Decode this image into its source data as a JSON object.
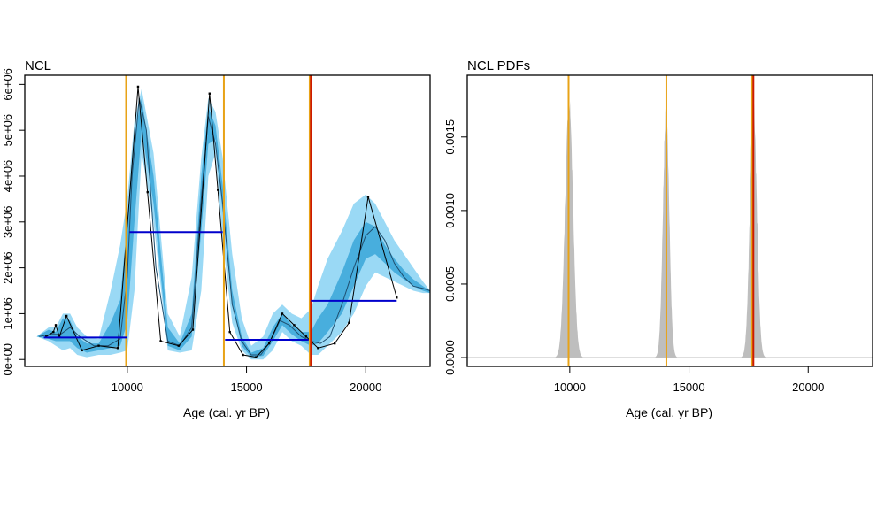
{
  "chart_data": [
    {
      "type": "line",
      "title": "NCL",
      "xlabel": "Age (cal. yr BP)",
      "ylabel": "",
      "xlim": [
        5700,
        22700
      ],
      "ylim": [
        -150000,
        6200000
      ],
      "xticks": [
        10000,
        15000,
        20000
      ],
      "xtick_labels": [
        "10000",
        "15000",
        "20000"
      ],
      "yticks": [
        0,
        1000000,
        2000000,
        3000000,
        4000000,
        5000000,
        6000000
      ],
      "ytick_labels": [
        "0e+00",
        "1e+06",
        "2e+06",
        "3e+06",
        "4e+06",
        "5e+06",
        "6e+06"
      ],
      "grid": false,
      "colors": {
        "outer_band": "#9ad9f5",
        "inner_band": "#3aa6d8",
        "orange_line": "#e8a317",
        "red_line": "#cc1a00",
        "blue_line": "#0000cc",
        "line": "#000000"
      },
      "band_x": [
        6200,
        6700,
        7000,
        7300,
        7600,
        7900,
        8300,
        8800,
        9300,
        9700,
        10000,
        10300,
        10600,
        11100,
        11700,
        12200,
        12700,
        13100,
        13400,
        13700,
        14000,
        14400,
        14800,
        15200,
        15700,
        16100,
        16500,
        16900,
        17300,
        17700,
        18000,
        18400,
        19000,
        19500,
        20000,
        20400,
        20800,
        21200,
        21600,
        22000,
        22400,
        22700
      ],
      "outer_upper": [
        500000,
        700000,
        700000,
        1000000,
        1000000,
        700000,
        500000,
        450000,
        1500000,
        2500000,
        3500000,
        5200000,
        5900000,
        4500000,
        1000000,
        500000,
        1800000,
        4400000,
        5700000,
        5400000,
        4400000,
        2300000,
        900000,
        300000,
        500000,
        1000000,
        1200000,
        1000000,
        900000,
        1100000,
        1600000,
        2200000,
        2800000,
        3400000,
        3600000,
        3400000,
        3000000,
        2600000,
        2300000,
        2000000,
        1700000,
        1500000
      ],
      "outer_lower": [
        500000,
        400000,
        300000,
        200000,
        250000,
        100000,
        50000,
        100000,
        100000,
        150000,
        200000,
        1500000,
        4500000,
        3000000,
        200000,
        150000,
        200000,
        1500000,
        4000000,
        4500000,
        2600000,
        800000,
        200000,
        0,
        0,
        200000,
        600000,
        400000,
        300000,
        100000,
        100000,
        300000,
        600000,
        1000000,
        1600000,
        1900000,
        1800000,
        1700000,
        1600000,
        1500000,
        1450000,
        1450000
      ],
      "inner_upper": [
        500000,
        650000,
        600000,
        900000,
        850000,
        500000,
        350000,
        350000,
        800000,
        1300000,
        3000000,
        4900000,
        5700000,
        4000000,
        700000,
        350000,
        1000000,
        4000000,
        5500000,
        5100000,
        3800000,
        1500000,
        500000,
        150000,
        250000,
        700000,
        1000000,
        750000,
        600000,
        600000,
        900000,
        1200000,
        1900000,
        2600000,
        3000000,
        2900000,
        2500000,
        2200000,
        1950000,
        1750000,
        1600000,
        1500000
      ],
      "inner_lower": [
        500000,
        450000,
        400000,
        400000,
        400000,
        250000,
        150000,
        200000,
        250000,
        300000,
        800000,
        3000000,
        5000000,
        3400000,
        300000,
        200000,
        500000,
        2800000,
        4700000,
        4800000,
        3200000,
        1200000,
        300000,
        50000,
        80000,
        400000,
        750000,
        550000,
        400000,
        300000,
        350000,
        600000,
        1000000,
        1600000,
        2200000,
        2300000,
        2100000,
        1900000,
        1750000,
        1600000,
        1500000,
        1450000
      ],
      "median_x": [
        6300,
        6800,
        7200,
        7600,
        8000,
        8600,
        9200,
        9700,
        10000,
        10200,
        10500,
        10800,
        11200,
        11700,
        12200,
        12700,
        13100,
        13400,
        13700,
        14000,
        14400,
        14800,
        15200,
        15600,
        16000,
        16400,
        16800,
        17300,
        17700,
        18100,
        18500,
        19000,
        19500,
        20000,
        20400,
        20800,
        21200,
        21600,
        22000,
        22400,
        22700
      ],
      "median_y": [
        500000,
        550000,
        550000,
        700000,
        500000,
        300000,
        300000,
        450000,
        1800000,
        4000000,
        5700000,
        5000000,
        2000000,
        400000,
        300000,
        700000,
        3500000,
        5300000,
        4700000,
        3400000,
        1200000,
        400000,
        100000,
        100000,
        400000,
        850000,
        750000,
        500000,
        400000,
        350000,
        500000,
        1200000,
        2000000,
        2700000,
        2900000,
        2600000,
        2100000,
        1800000,
        1600000,
        1550000,
        1500000
      ],
      "spd_x": [
        6600,
        6900,
        7000,
        7150,
        7450,
        8100,
        8800,
        9600,
        10450,
        10850,
        11400,
        12150,
        12750,
        13450,
        13800,
        14300,
        14850,
        15400,
        15950,
        16500,
        17000,
        17500,
        18000,
        18700,
        19300,
        20100,
        21300
      ],
      "spd_y": [
        500000,
        600000,
        750000,
        500000,
        950000,
        200000,
        300000,
        250000,
        5950000,
        3650000,
        400000,
        300000,
        650000,
        5800000,
        3700000,
        600000,
        100000,
        50000,
        350000,
        1000000,
        750000,
        500000,
        250000,
        350000,
        800000,
        3550000,
        1350000
      ],
      "vertical_lines": [
        {
          "x": 9950,
          "color": "#e8a317"
        },
        {
          "x": 14050,
          "color": "#e8a317"
        },
        {
          "x": 17650,
          "color": "#e8a317"
        },
        {
          "x": 17700,
          "color": "#cc1a00"
        }
      ],
      "horizontal_segments": [
        {
          "x0": 6500,
          "x1": 10000,
          "y": 480000
        },
        {
          "x0": 10100,
          "x1": 14000,
          "y": 2780000
        },
        {
          "x0": 14100,
          "x1": 17600,
          "y": 430000
        },
        {
          "x0": 17700,
          "x1": 21300,
          "y": 1280000
        }
      ]
    },
    {
      "type": "area",
      "title": "NCL PDFs",
      "xlabel": "Age (cal. yr BP)",
      "ylabel": "",
      "xlim": [
        5700,
        22700
      ],
      "ylim": [
        -6e-05,
        0.00192
      ],
      "xticks": [
        10000,
        15000,
        20000
      ],
      "xtick_labels": [
        "10000",
        "15000",
        "20000"
      ],
      "yticks": [
        0,
        0.0005,
        0.001,
        0.0015
      ],
      "ytick_labels": [
        "0.0000",
        "0.0005",
        "0.0010",
        "0.0015"
      ],
      "grid": false,
      "colors": {
        "fill": "#bebebe",
        "baseline": "#bebebe",
        "orange_line": "#e8a317",
        "red_line": "#cc1a00"
      },
      "peaks": [
        {
          "center": 9970,
          "sd": 165,
          "height": 0.00175
        },
        {
          "center": 14040,
          "sd": 130,
          "height": 0.00168
        },
        {
          "center": 17700,
          "sd": 145,
          "height": 0.00172
        }
      ],
      "vertical_lines": [
        {
          "x": 9950,
          "color": "#e8a317"
        },
        {
          "x": 14050,
          "color": "#e8a317"
        },
        {
          "x": 17650,
          "color": "#e8a317"
        },
        {
          "x": 17700,
          "color": "#cc1a00"
        }
      ]
    }
  ]
}
